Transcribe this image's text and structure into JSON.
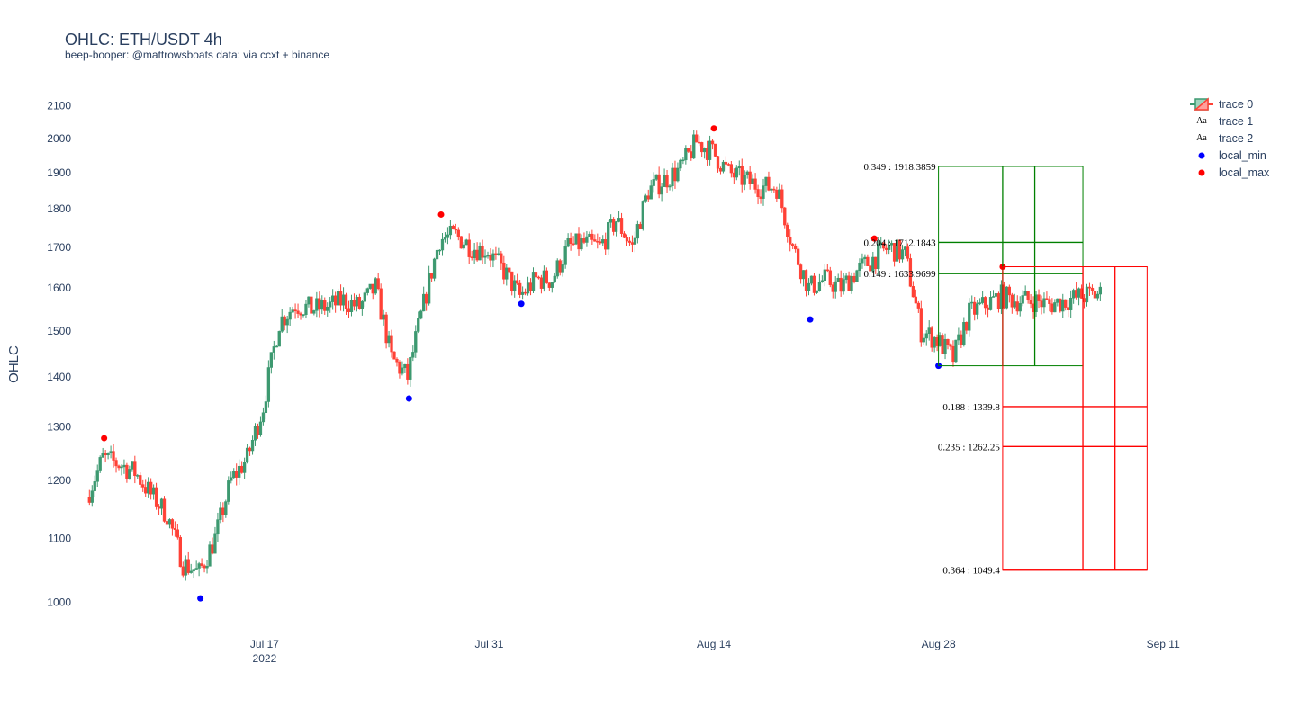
{
  "title": "OHLC: ETH/USDT 4h",
  "subtitle": "beep-booper: @mattrowsboats data: via ccxt + binance",
  "legend": [
    {
      "label": "trace 0",
      "symbol": "candle"
    },
    {
      "label": "trace 1",
      "symbol": "text"
    },
    {
      "label": "trace 2",
      "symbol": "text"
    },
    {
      "label": "local_min",
      "symbol": "dot",
      "color": "#0000ff"
    },
    {
      "label": "local_max",
      "symbol": "dot",
      "color": "#ff0000"
    }
  ],
  "legend_text_symbol": "Aa",
  "colors": {
    "up": "#3d9970",
    "down": "#ff4136",
    "min": "#0000ff",
    "max": "#ff0000",
    "fib_green": "#008000",
    "fib_red": "#ff0000"
  },
  "chart_data": {
    "type": "ohlc-candlestick",
    "ylabel": "OHLC",
    "y_scale": "log",
    "ylim": [
      960,
      2150
    ],
    "xlim": [
      "2022-07-05",
      "2022-09-12"
    ],
    "x_ticks": [
      {
        "date": "2022-07-17",
        "label": "Jul 17",
        "sub": "2022"
      },
      {
        "date": "2022-07-31",
        "label": "Jul 31",
        "sub": ""
      },
      {
        "date": "2022-08-14",
        "label": "Aug 14",
        "sub": ""
      },
      {
        "date": "2022-08-28",
        "label": "Aug 28",
        "sub": ""
      },
      {
        "date": "2022-09-11",
        "label": "Sep 11",
        "sub": ""
      }
    ],
    "y_ticks": [
      1000,
      1100,
      1200,
      1300,
      1400,
      1500,
      1600,
      1700,
      1800,
      1900,
      2000,
      2100
    ],
    "series_start": "2022-07-06",
    "series_end": "2022-09-07",
    "candle_interval_hours": 4,
    "price_path": [
      [
        "2022-07-06",
        1170
      ],
      [
        "2022-07-07",
        1240
      ],
      [
        "2022-07-08",
        1230
      ],
      [
        "2022-07-09",
        1215
      ],
      [
        "2022-07-10",
        1175
      ],
      [
        "2022-07-11",
        1140
      ],
      [
        "2022-07-12",
        1060
      ],
      [
        "2022-07-13",
        1045
      ],
      [
        "2022-07-14",
        1100
      ],
      [
        "2022-07-15",
        1200
      ],
      [
        "2022-07-16",
        1240
      ],
      [
        "2022-07-17",
        1340
      ],
      [
        "2022-07-18",
        1520
      ],
      [
        "2022-07-19",
        1560
      ],
      [
        "2022-07-20",
        1550
      ],
      [
        "2022-07-21",
        1555
      ],
      [
        "2022-07-22",
        1570
      ],
      [
        "2022-07-23",
        1555
      ],
      [
        "2022-07-24",
        1600
      ],
      [
        "2022-07-25",
        1440
      ],
      [
        "2022-07-26",
        1400
      ],
      [
        "2022-07-27",
        1560
      ],
      [
        "2022-07-28",
        1720
      ],
      [
        "2022-07-29",
        1730
      ],
      [
        "2022-07-30",
        1700
      ],
      [
        "2022-07-31",
        1690
      ],
      [
        "2022-08-01",
        1640
      ],
      [
        "2022-08-02",
        1580
      ],
      [
        "2022-08-03",
        1620
      ],
      [
        "2022-08-04",
        1620
      ],
      [
        "2022-08-05",
        1700
      ],
      [
        "2022-08-06",
        1710
      ],
      [
        "2022-08-07",
        1700
      ],
      [
        "2022-08-08",
        1770
      ],
      [
        "2022-08-09",
        1700
      ],
      [
        "2022-08-10",
        1850
      ],
      [
        "2022-08-11",
        1880
      ],
      [
        "2022-08-12",
        1910
      ],
      [
        "2022-08-13",
        1990
      ],
      [
        "2022-08-14",
        1960
      ],
      [
        "2022-08-15",
        1900
      ],
      [
        "2022-08-16",
        1880
      ],
      [
        "2022-08-17",
        1860
      ],
      [
        "2022-08-18",
        1860
      ],
      [
        "2022-08-19",
        1700
      ],
      [
        "2022-08-20",
        1600
      ],
      [
        "2022-08-21",
        1620
      ],
      [
        "2022-08-22",
        1600
      ],
      [
        "2022-08-23",
        1640
      ],
      [
        "2022-08-24",
        1670
      ],
      [
        "2022-08-25",
        1700
      ],
      [
        "2022-08-26",
        1680
      ],
      [
        "2022-08-27",
        1500
      ],
      [
        "2022-08-28",
        1480
      ],
      [
        "2022-08-29",
        1440
      ],
      [
        "2022-08-30",
        1540
      ],
      [
        "2022-08-31",
        1560
      ],
      [
        "2022-09-01",
        1580
      ],
      [
        "2022-09-02",
        1570
      ],
      [
        "2022-09-03",
        1570
      ],
      [
        "2022-09-04",
        1560
      ],
      [
        "2022-09-05",
        1570
      ],
      [
        "2022-09-06",
        1580
      ],
      [
        "2022-09-07",
        1585
      ]
    ],
    "local_min": [
      {
        "date": "2022-07-13",
        "value": 1006
      },
      {
        "date": "2022-07-26",
        "value": 1356
      },
      {
        "date": "2022-08-02",
        "value": 1562
      },
      {
        "date": "2022-08-20",
        "value": 1526
      },
      {
        "date": "2022-08-28",
        "value": 1424
      }
    ],
    "local_max": [
      {
        "date": "2022-07-07",
        "value": 1278
      },
      {
        "date": "2022-07-28",
        "value": 1785
      },
      {
        "date": "2022-08-14",
        "value": 2030
      },
      {
        "date": "2022-08-24",
        "value": 1722
      },
      {
        "date": "2022-09-01",
        "value": 1651
      }
    ],
    "fib_green": {
      "x_start": "2022-08-28",
      "x_end": "2022-09-06",
      "x_inner": [
        "2022-09-01",
        "2022-09-03"
      ],
      "bottom": 1424,
      "levels": [
        {
          "value": 1918.3859,
          "label": "0.349 : 1918.3859"
        },
        {
          "value": 1712.1843,
          "label": "0.204 : 1712.1843"
        },
        {
          "value": 1633.9699,
          "label": "0.149 : 1633.9699"
        }
      ]
    },
    "fib_red": {
      "x_start": "2022-09-01",
      "x_end": "2022-09-10",
      "x_inner": [
        "2022-09-06",
        "2022-09-08"
      ],
      "top": 1651,
      "levels": [
        {
          "value": 1339.8,
          "label": "0.188 : 1339.8"
        },
        {
          "value": 1262.25,
          "label": "0.235 : 1262.25"
        },
        {
          "value": 1049.4,
          "label": "0.364 : 1049.4"
        }
      ]
    }
  }
}
